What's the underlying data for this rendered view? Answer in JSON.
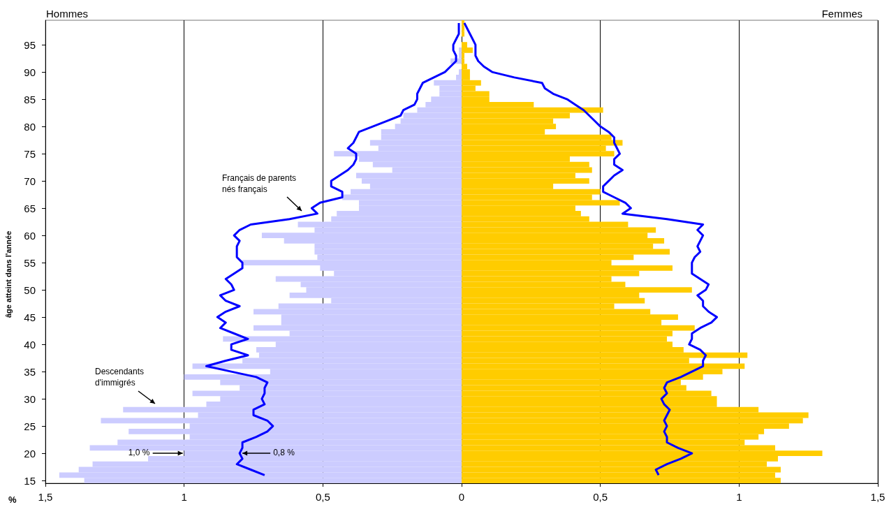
{
  "chart_data": {
    "type": "bar",
    "orientation": "horizontal",
    "ylabel": "âge atteint dans l'année",
    "xlabel": "%",
    "annotations": [
      "Hommes",
      "Femmes",
      "Français de parents nés français",
      "Descendants d'immigrés",
      {
        "text": "1,0 %",
        "x": -1.0,
        "y": "20"
      },
      {
        "text": "0,8 %",
        "x": -0.8,
        "y": "20"
      }
    ],
    "categories": [
      null,
      null,
      null,
      null,
      "95",
      null,
      null,
      null,
      null,
      "90",
      null,
      null,
      null,
      null,
      "85",
      null,
      null,
      null,
      null,
      "80",
      null,
      null,
      null,
      null,
      "75",
      null,
      null,
      null,
      null,
      "70",
      null,
      null,
      null,
      null,
      "65",
      null,
      null,
      null,
      null,
      "60",
      null,
      null,
      null,
      null,
      "55",
      null,
      null,
      null,
      null,
      "50",
      null,
      null,
      null,
      null,
      "45",
      null,
      null,
      null,
      null,
      "40",
      null,
      null,
      null,
      null,
      "35",
      null,
      null,
      null,
      null,
      "30",
      null,
      null,
      null,
      null,
      "25",
      null,
      null,
      null,
      null,
      "20",
      null,
      null,
      null,
      null,
      "15"
    ],
    "series": [
      {
        "color": "#ccccff",
        "values": [
          0,
          0,
          0,
          0,
          0,
          -0.01,
          -0.01,
          -0.04,
          0,
          -0.01,
          -0.02,
          -0.1,
          -0.08,
          -0.08,
          -0.11,
          -0.13,
          -0.16,
          -0.21,
          -0.22,
          -0.24,
          -0.29,
          -0.29,
          -0.33,
          -0.3,
          -0.46,
          -0.37,
          -0.32,
          -0.25,
          -0.38,
          -0.36,
          -0.33,
          -0.4,
          -0.43,
          -0.37,
          -0.37,
          -0.45,
          -0.47,
          -0.59,
          -0.53,
          -0.72,
          -0.64,
          -0.53,
          -0.53,
          -0.52,
          -0.79,
          -0.51,
          -0.46,
          -0.67,
          -0.58,
          -0.56,
          -0.62,
          -0.47,
          -0.66,
          -0.75,
          -0.65,
          -0.65,
          -0.75,
          -0.62,
          -0.86,
          -0.67,
          -0.74,
          -0.73,
          -0.79,
          -0.97,
          -0.69,
          -1.0,
          -0.87,
          -0.8,
          -0.97,
          -0.87,
          -0.92,
          -1.22,
          -0.95,
          -1.3,
          -0.98,
          -1.2,
          -0.98,
          -1.24,
          -1.34,
          -1.0,
          -1.13,
          -1.33,
          -1.38,
          -1.45,
          -1.36
        ]
      },
      {
        "color": "#ffcc00",
        "values": [
          0.01,
          0.01,
          0.01,
          0,
          0.02,
          0.04,
          0.01,
          0.01,
          0.02,
          0.03,
          0.03,
          0.07,
          0.05,
          0.1,
          0.1,
          0.26,
          0.51,
          0.39,
          0.33,
          0.34,
          0.3,
          0.54,
          0.58,
          0.52,
          0.55,
          0.39,
          0.46,
          0.47,
          0.41,
          0.46,
          0.33,
          0.5,
          0.47,
          0.57,
          0.41,
          0.43,
          0.46,
          0.6,
          0.7,
          0.67,
          0.73,
          0.69,
          0.75,
          0.62,
          0.54,
          0.76,
          0.64,
          0.54,
          0.59,
          0.83,
          0.64,
          0.66,
          0.55,
          0.68,
          0.78,
          0.72,
          0.84,
          0.76,
          0.74,
          0.76,
          0.8,
          1.03,
          0.82,
          1.02,
          0.94,
          0.87,
          0.79,
          0.81,
          0.9,
          0.92,
          0.92,
          1.07,
          1.25,
          1.23,
          1.18,
          1.09,
          1.07,
          1.02,
          1.13,
          1.3,
          1.14,
          1.1,
          1.15,
          1.13,
          1.15
        ]
      },
      {
        "type": "line",
        "color": "#0000ff",
        "values": [
          -0.01,
          -0.01,
          -0.01,
          -0.02,
          -0.03,
          -0.03,
          -0.02,
          -0.02,
          -0.04,
          -0.06,
          -0.1,
          -0.14,
          -0.15,
          -0.16,
          -0.16,
          -0.17,
          -0.21,
          -0.22,
          -0.27,
          -0.32,
          -0.37,
          -0.38,
          -0.39,
          -0.41,
          -0.38,
          -0.38,
          -0.39,
          -0.41,
          -0.44,
          -0.47,
          -0.47,
          -0.43,
          -0.43,
          -0.51,
          -0.54,
          -0.52,
          -0.62,
          -0.76,
          -0.8,
          -0.82,
          -0.8,
          -0.81,
          -0.81,
          -0.81,
          -0.79,
          -0.79,
          -0.82,
          -0.85,
          -0.83,
          -0.82,
          -0.87,
          -0.85,
          -0.8,
          -0.85,
          -0.88,
          -0.85,
          -0.87,
          -0.82,
          -0.77,
          -0.83,
          -0.83,
          -0.77,
          -0.85,
          -0.92,
          -0.83,
          -0.74,
          -0.7,
          -0.71,
          -0.71,
          -0.72,
          -0.71,
          -0.75,
          -0.75,
          -0.7,
          -0.68,
          -0.7,
          -0.74,
          -0.79,
          -0.79,
          -0.8,
          -0.79,
          -0.81,
          -0.76,
          -0.71,
          null
        ]
      },
      {
        "type": "line",
        "color": "#0000ff",
        "values": [
          0.01,
          0.02,
          0.03,
          0.04,
          0.05,
          0.05,
          0.05,
          0.06,
          0.08,
          0.11,
          0.19,
          0.29,
          0.3,
          0.33,
          0.38,
          0.41,
          0.44,
          0.46,
          0.48,
          0.5,
          0.53,
          0.55,
          0.55,
          0.56,
          0.57,
          0.55,
          0.55,
          0.58,
          0.55,
          0.53,
          0.51,
          0.51,
          0.55,
          0.59,
          0.61,
          0.58,
          0.74,
          0.87,
          0.85,
          0.87,
          0.86,
          0.85,
          0.86,
          0.84,
          0.83,
          0.83,
          0.83,
          0.86,
          0.89,
          0.88,
          0.85,
          0.87,
          0.87,
          0.89,
          0.92,
          0.9,
          0.86,
          0.83,
          0.83,
          0.82,
          0.86,
          0.88,
          0.87,
          0.87,
          0.83,
          0.79,
          0.74,
          0.73,
          0.74,
          0.72,
          0.73,
          0.75,
          0.74,
          0.73,
          0.74,
          0.73,
          0.74,
          0.74,
          0.78,
          0.83,
          0.79,
          0.74,
          0.7,
          0.71,
          null
        ]
      }
    ],
    "xlim": [
      -1.5,
      1.5
    ],
    "xticks": [
      {
        "value": -1.5,
        "label": "1,5"
      },
      {
        "value": -1,
        "label": "1"
      },
      {
        "value": -0.5,
        "label": "0,5"
      },
      0,
      {
        "value": 0.5,
        "label": "0,5"
      },
      1,
      {
        "value": 1.5,
        "label": "1,5"
      }
    ],
    "grid": "x",
    "stacked": true,
    "marker": "none"
  }
}
